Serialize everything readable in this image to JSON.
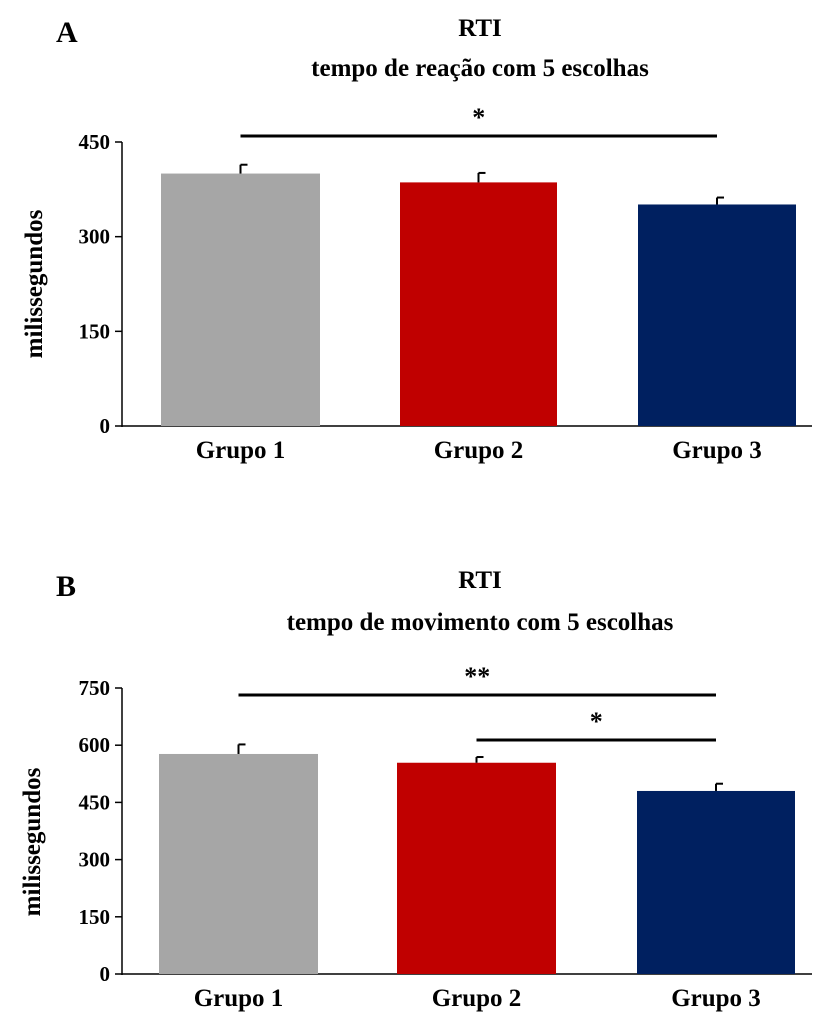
{
  "chart_data": [
    {
      "type": "bar",
      "panel_label": "A",
      "title": "RTI",
      "subtitle": "tempo de reação com 5 escolhas",
      "xlabel": "",
      "ylabel": "milissegundos",
      "ylim": [
        0,
        450
      ],
      "yticks": [
        0,
        150,
        300,
        450
      ],
      "categories": [
        "Grupo 1",
        "Grupo 2",
        "Grupo 3"
      ],
      "values": [
        400,
        386,
        351
      ],
      "errors": [
        14,
        15,
        11
      ],
      "colors": [
        "#a6a6a6",
        "#c00000",
        "#002060"
      ],
      "significance": [
        {
          "from": 0,
          "to": 2,
          "label": "*"
        }
      ],
      "grid": false,
      "legend": "none"
    },
    {
      "type": "bar",
      "panel_label": "B",
      "title": "RTI",
      "subtitle": "tempo de movimento com 5 escolhas",
      "xlabel": "",
      "ylabel": "milissegundos",
      "ylim": [
        0,
        750
      ],
      "yticks": [
        0,
        150,
        300,
        450,
        600,
        750
      ],
      "categories": [
        "Grupo 1",
        "Grupo 2",
        "Grupo 3"
      ],
      "values": [
        577,
        554,
        480
      ],
      "errors": [
        25,
        15,
        19
      ],
      "colors": [
        "#a6a6a6",
        "#c00000",
        "#002060"
      ],
      "significance": [
        {
          "from": 0,
          "to": 2,
          "label": "**"
        },
        {
          "from": 1,
          "to": 2,
          "label": "*"
        }
      ],
      "grid": false,
      "legend": "none"
    }
  ]
}
